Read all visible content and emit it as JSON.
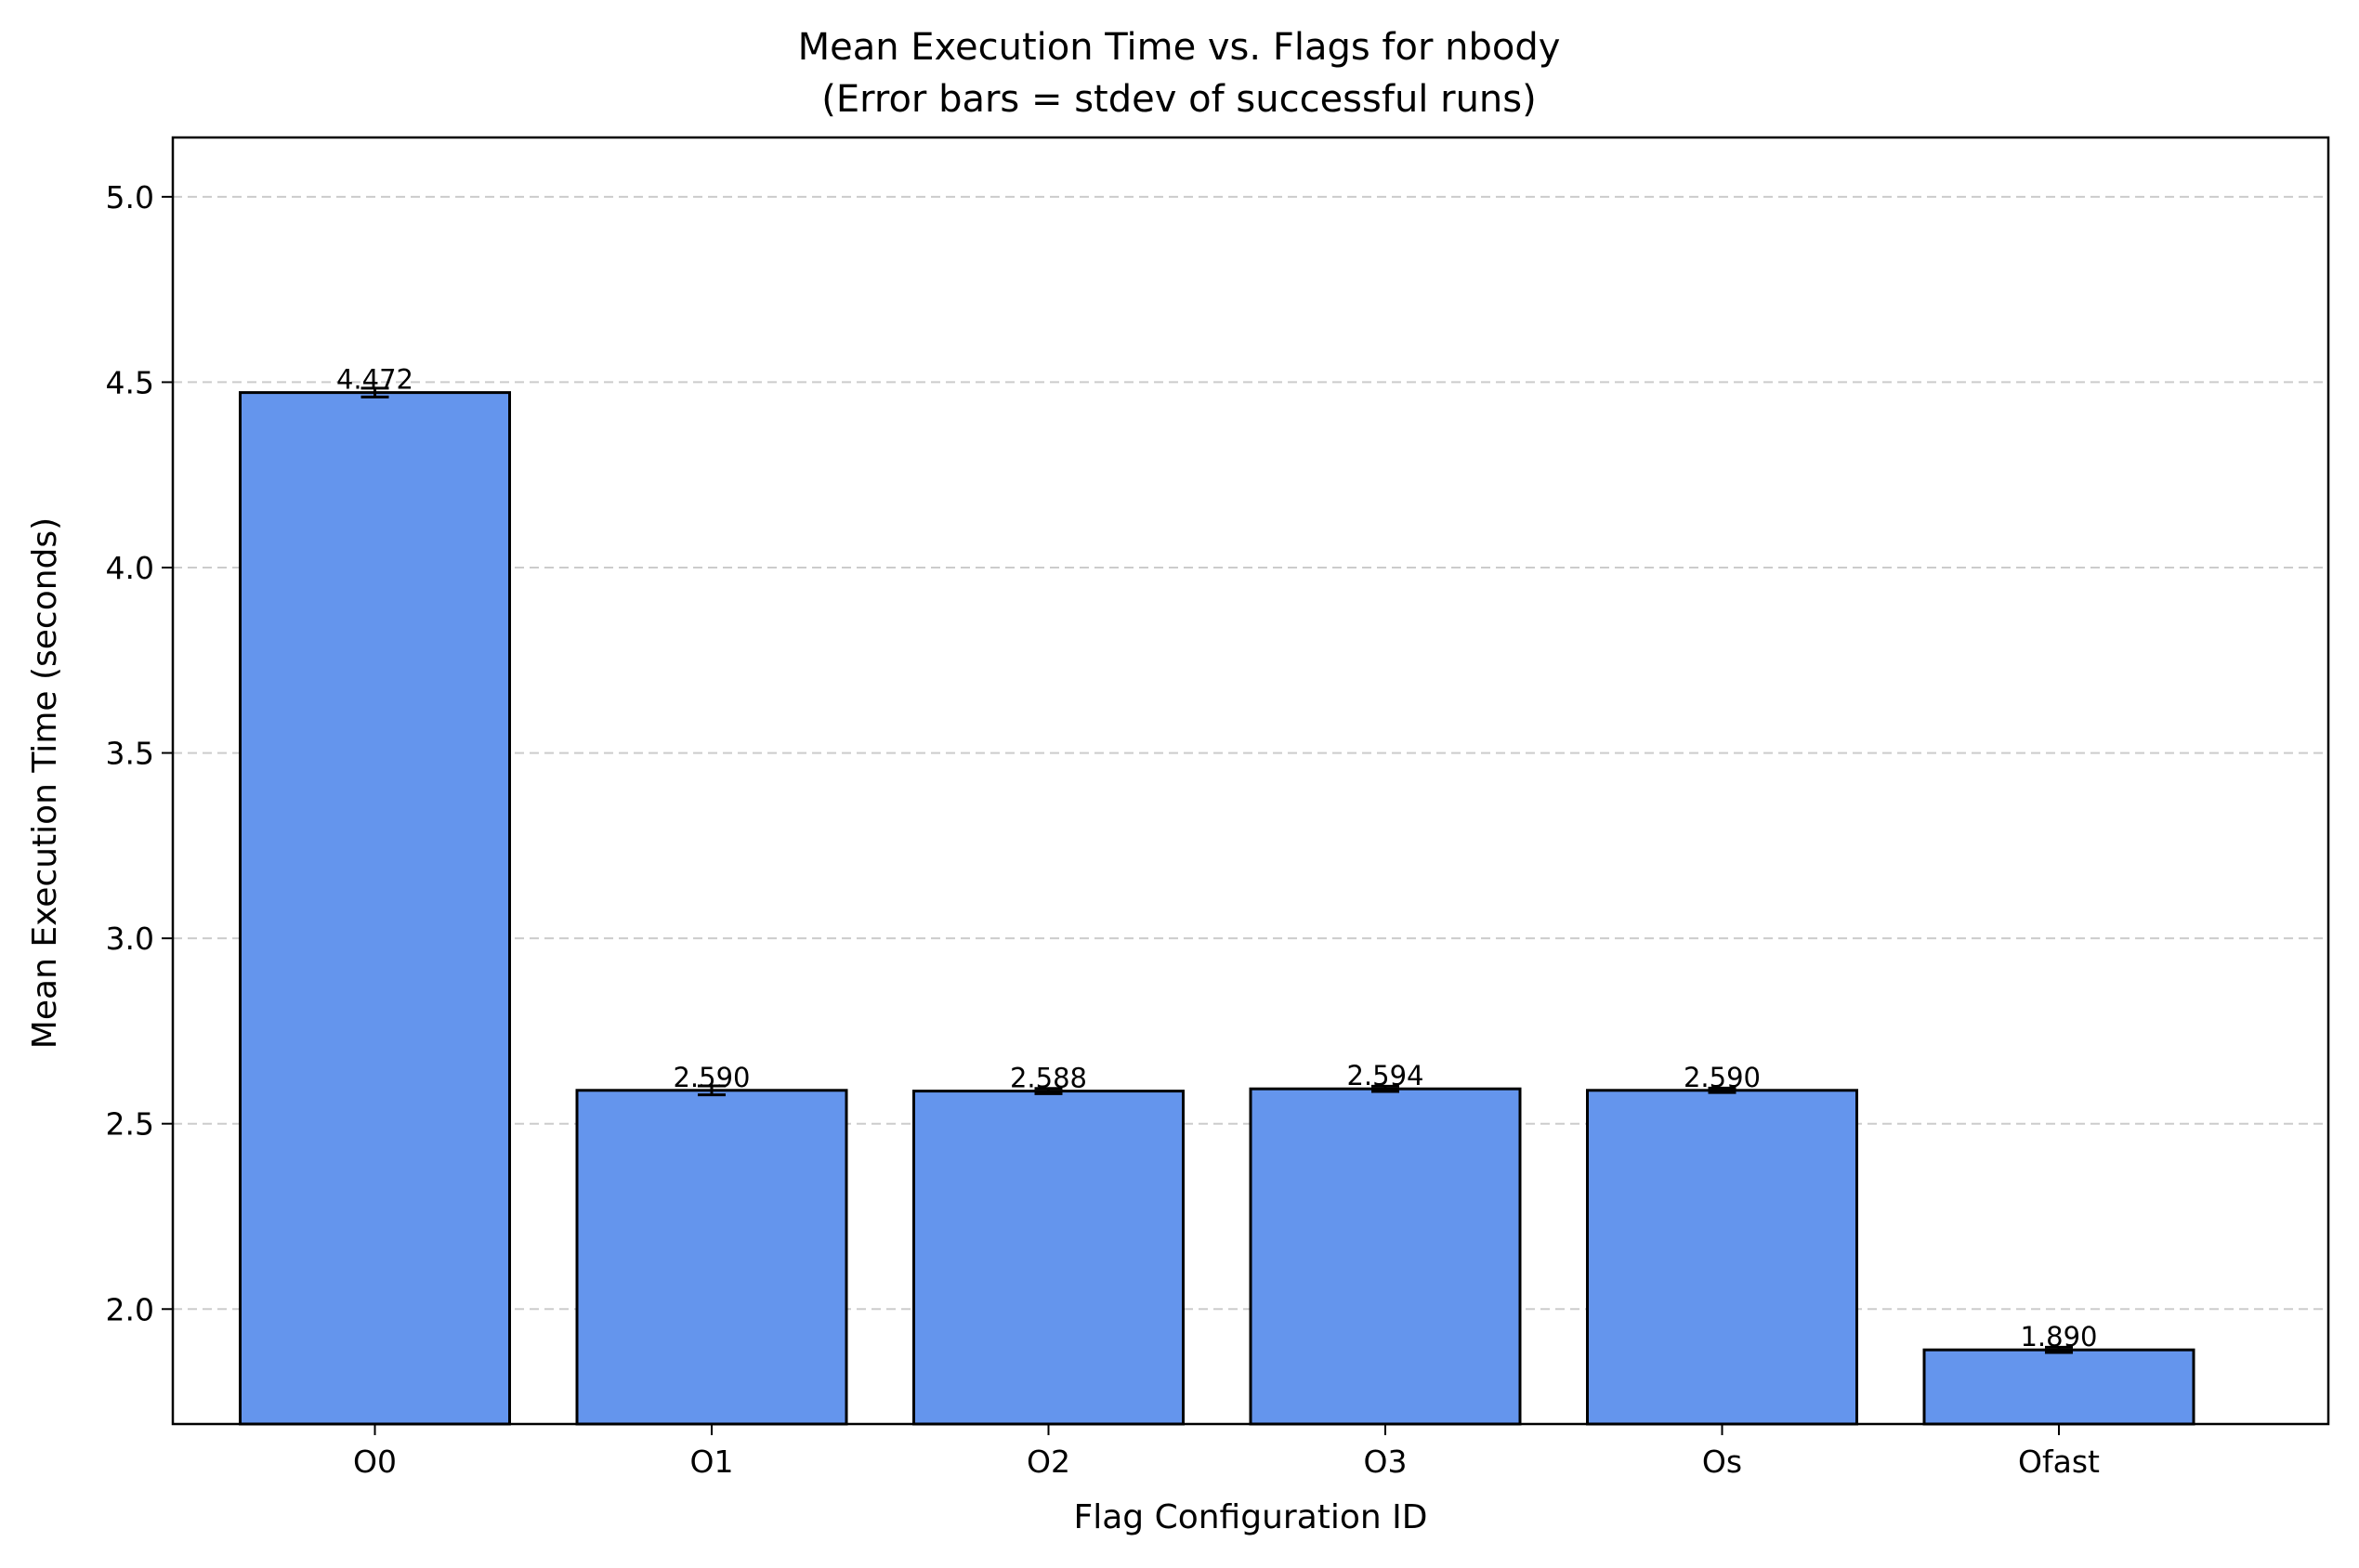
{
  "chart_data": {
    "type": "bar",
    "title": "Mean Execution Time vs. Flags for nbody",
    "subtitle": "(Error bars = stdev of successful runs)",
    "xlabel": "Flag Configuration ID",
    "ylabel": "Mean Execution Time (seconds)",
    "categories": [
      "O0",
      "O1",
      "O2",
      "O3",
      "Os",
      "Ofast"
    ],
    "values": [
      4.472,
      2.59,
      2.588,
      2.594,
      2.59,
      1.89
    ],
    "value_labels": [
      "4.472",
      "2.590",
      "2.588",
      "2.594",
      "2.590",
      "1.890"
    ],
    "errors": [
      0.012,
      0.012,
      0.007,
      0.007,
      0.006,
      0.007
    ],
    "ylim": [
      1.69,
      5.16
    ],
    "yticks": [
      2.0,
      2.5,
      3.0,
      3.5,
      4.0,
      4.5,
      5.0
    ],
    "ytick_labels": [
      "2.0",
      "2.5",
      "3.0",
      "3.5",
      "4.0",
      "4.5",
      "5.0"
    ],
    "grid": "y-dashed",
    "legend": "none",
    "colors": {
      "bar": "#6495ed",
      "edge": "#000000",
      "grid": "#cccccc"
    }
  }
}
